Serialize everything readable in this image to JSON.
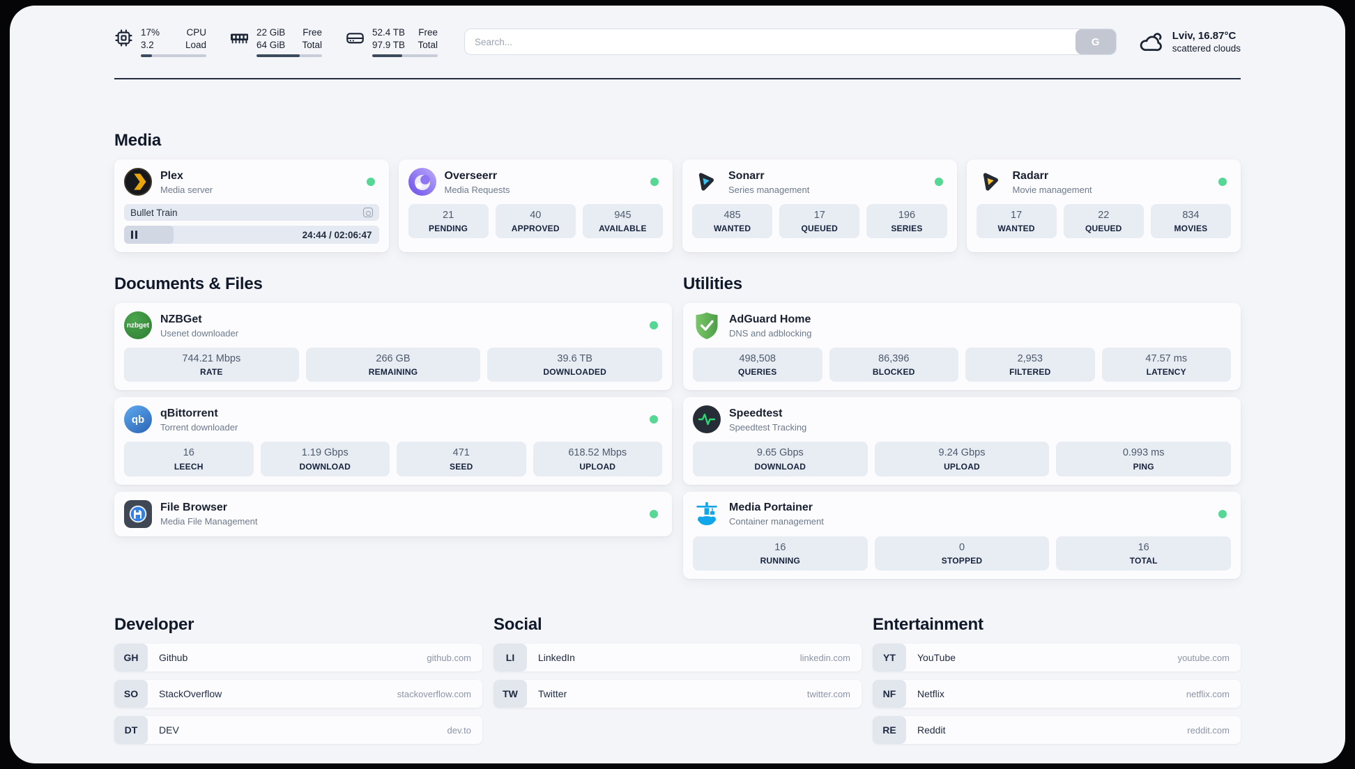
{
  "header": {
    "stats": {
      "cpu": {
        "value_top": "17%",
        "value_bottom": "3.2",
        "label_top": "CPU",
        "label_bottom": "Load",
        "progress_pct": 17
      },
      "ram": {
        "value_top": "22 GiB",
        "value_bottom": "64 GiB",
        "label_top": "Free",
        "label_bottom": "Total",
        "progress_pct": 66
      },
      "disk": {
        "value_top": "52.4 TB",
        "value_bottom": "97.9 TB",
        "label_top": "Free",
        "label_bottom": "Total",
        "progress_pct": 46
      }
    },
    "search": {
      "placeholder": "Search...",
      "engine_button": "G"
    },
    "weather": {
      "location_temp": "Lviv, 16.87°C",
      "condition": "scattered clouds"
    }
  },
  "media": {
    "title": "Media",
    "plex": {
      "name": "Plex",
      "desc": "Media server",
      "online": true,
      "now_playing": {
        "title": "Bullet Train",
        "time_display": "24:44 / 02:06:47",
        "progress_pct": 19.5
      }
    },
    "overseerr": {
      "name": "Overseerr",
      "desc": "Media Requests",
      "online": true,
      "stats": [
        {
          "value": "21",
          "label": "PENDING"
        },
        {
          "value": "40",
          "label": "APPROVED"
        },
        {
          "value": "945",
          "label": "AVAILABLE"
        }
      ]
    },
    "sonarr": {
      "name": "Sonarr",
      "desc": "Series management",
      "online": true,
      "stats": [
        {
          "value": "485",
          "label": "WANTED"
        },
        {
          "value": "17",
          "label": "QUEUED"
        },
        {
          "value": "196",
          "label": "SERIES"
        }
      ]
    },
    "radarr": {
      "name": "Radarr",
      "desc": "Movie management",
      "online": true,
      "stats": [
        {
          "value": "17",
          "label": "WANTED"
        },
        {
          "value": "22",
          "label": "QUEUED"
        },
        {
          "value": "834",
          "label": "MOVIES"
        }
      ]
    }
  },
  "documents": {
    "title": "Documents & Files",
    "nzbget": {
      "name": "NZBGet",
      "desc": "Usenet downloader",
      "online": true,
      "stats": [
        {
          "value": "744.21 Mbps",
          "label": "RATE"
        },
        {
          "value": "266 GB",
          "label": "REMAINING"
        },
        {
          "value": "39.6 TB",
          "label": "DOWNLOADED"
        }
      ]
    },
    "qbittorrent": {
      "name": "qBittorrent",
      "desc": "Torrent downloader",
      "online": true,
      "stats": [
        {
          "value": "16",
          "label": "LEECH"
        },
        {
          "value": "1.19 Gbps",
          "label": "DOWNLOAD"
        },
        {
          "value": "471",
          "label": "SEED"
        },
        {
          "value": "618.52 Mbps",
          "label": "UPLOAD"
        }
      ]
    },
    "filebrowser": {
      "name": "File Browser",
      "desc": "Media File Management",
      "online": true
    }
  },
  "utilities": {
    "title": "Utilities",
    "adguard": {
      "name": "AdGuard Home",
      "desc": "DNS and adblocking",
      "online": false,
      "stats": [
        {
          "value": "498,508",
          "label": "QUERIES"
        },
        {
          "value": "86,396",
          "label": "BLOCKED"
        },
        {
          "value": "2,953",
          "label": "FILTERED"
        },
        {
          "value": "47.57 ms",
          "label": "LATENCY"
        }
      ]
    },
    "speedtest": {
      "name": "Speedtest",
      "desc": "Speedtest Tracking",
      "online": false,
      "stats": [
        {
          "value": "9.65 Gbps",
          "label": "DOWNLOAD"
        },
        {
          "value": "9.24 Gbps",
          "label": "UPLOAD"
        },
        {
          "value": "0.993 ms",
          "label": "PING"
        }
      ]
    },
    "portainer": {
      "name": "Media Portainer",
      "desc": "Container management",
      "online": true,
      "stats": [
        {
          "value": "16",
          "label": "RUNNING"
        },
        {
          "value": "0",
          "label": "STOPPED"
        },
        {
          "value": "16",
          "label": "TOTAL"
        }
      ]
    }
  },
  "bookmarks": {
    "developer": {
      "title": "Developer",
      "links": [
        {
          "abbr": "GH",
          "name": "Github",
          "url": "github.com"
        },
        {
          "abbr": "SO",
          "name": "StackOverflow",
          "url": "stackoverflow.com"
        },
        {
          "abbr": "DT",
          "name": "DEV",
          "url": "dev.to"
        }
      ]
    },
    "social": {
      "title": "Social",
      "links": [
        {
          "abbr": "LI",
          "name": "LinkedIn",
          "url": "linkedin.com"
        },
        {
          "abbr": "TW",
          "name": "Twitter",
          "url": "twitter.com"
        }
      ]
    },
    "entertainment": {
      "title": "Entertainment",
      "links": [
        {
          "abbr": "YT",
          "name": "YouTube",
          "url": "youtube.com"
        },
        {
          "abbr": "NF",
          "name": "Netflix",
          "url": "netflix.com"
        },
        {
          "abbr": "RE",
          "name": "Reddit",
          "url": "reddit.com"
        }
      ]
    }
  },
  "colors": {
    "status_online": "#57d794",
    "accent_blue": "#10a6e9"
  }
}
